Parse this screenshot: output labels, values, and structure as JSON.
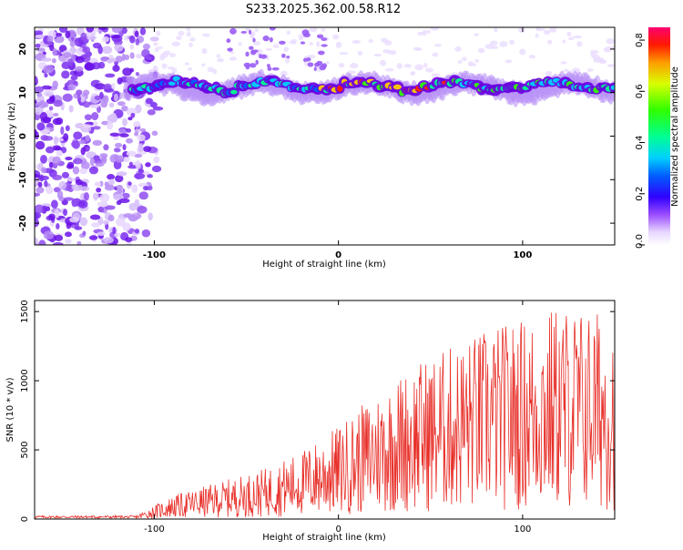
{
  "title": "S233.2025.362.00.58.R12",
  "chart_data": [
    {
      "type": "heatmap",
      "name": "spectrogram",
      "xlabel": "Height of straight line (km)",
      "ylabel": "Frequency (Hz)",
      "xlim": [
        -165,
        150
      ],
      "ylim": [
        -25,
        25
      ],
      "xticks": [
        -100,
        0,
        100
      ],
      "yticks": [
        -20,
        -10,
        0,
        10,
        20
      ],
      "colorbar": {
        "label": "Normalized spectral amplitude",
        "range": [
          0.0,
          0.85
        ],
        "ticks": [
          "0.0",
          "0.2",
          "0.4",
          "0.6",
          "0.8"
        ],
        "tick_values": [
          0.0,
          0.2,
          0.4,
          0.6,
          0.8
        ]
      },
      "signal_band_hz": [
        8,
        14
      ],
      "signal_start_km": -115
    },
    {
      "type": "line",
      "name": "snr",
      "xlabel": "Height of straight line (km)",
      "ylabel": "SNR (10 * v/v)",
      "xlim": [
        -165,
        150
      ],
      "ylim": [
        0,
        1580
      ],
      "xticks": [
        -100,
        0,
        100
      ],
      "yticks": [
        0,
        500,
        1000,
        1500
      ],
      "line_color": "#e8302a",
      "envelope": [
        {
          "x": -165,
          "y": 15
        },
        {
          "x": -110,
          "y": 20
        },
        {
          "x": -90,
          "y": 130
        },
        {
          "x": -60,
          "y": 220
        },
        {
          "x": -40,
          "y": 280
        },
        {
          "x": -20,
          "y": 380
        },
        {
          "x": 0,
          "y": 520
        },
        {
          "x": 20,
          "y": 700
        },
        {
          "x": 40,
          "y": 860
        },
        {
          "x": 60,
          "y": 960
        },
        {
          "x": 80,
          "y": 1060
        },
        {
          "x": 100,
          "y": 1120
        },
        {
          "x": 120,
          "y": 1200
        },
        {
          "x": 150,
          "y": 1150
        }
      ]
    }
  ],
  "colors": {
    "rainbow": [
      "#ffffff",
      "#e6d5ff",
      "#a060ff",
      "#6a00e0",
      "#0000ff",
      "#00ccff",
      "#00ff99",
      "#33ff00",
      "#ccff00",
      "#ffcc00",
      "#ff3300",
      "#ff0066"
    ],
    "axis": "#000000"
  }
}
